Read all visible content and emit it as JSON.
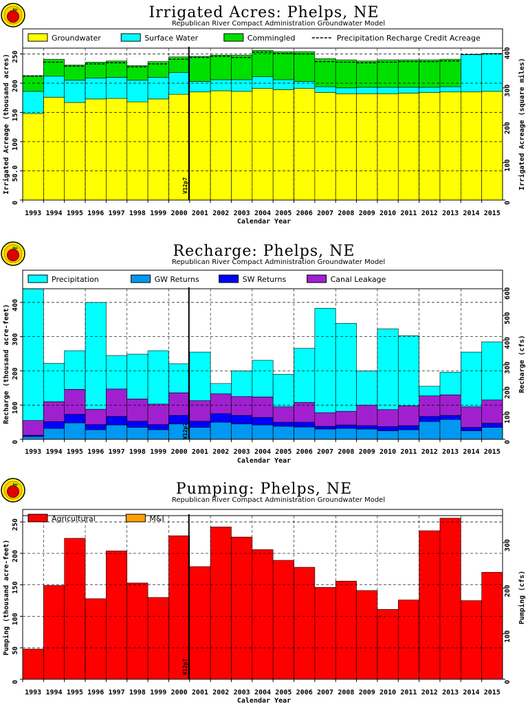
{
  "years": [
    "1993",
    "1994",
    "1995",
    "1996",
    "1997",
    "1998",
    "1999",
    "2000",
    "2001",
    "2002",
    "2003",
    "2004",
    "2005",
    "2006",
    "2007",
    "2008",
    "2009",
    "2010",
    "2011",
    "2012",
    "2013",
    "2014",
    "2015"
  ],
  "marker_label": "V12p7",
  "xlabel": "Calendar Year",
  "chart_data": [
    {
      "type": "area",
      "title": "Irrigated Acres: Phelps, NE",
      "subtitle": "Republican River Compact Administration Groundwater Model",
      "xlabel": "Calendar Year",
      "ylabel": "Irrigated Acreage (thousand acres)",
      "ylabel_right": "Irrigated Acreage (square miles)",
      "ylim": [
        0,
        260
      ],
      "yticks": [
        0,
        50,
        100,
        150,
        200,
        250
      ],
      "ytick_labels": [
        "0",
        "50.0",
        "100",
        "150",
        "200",
        "250"
      ],
      "yticks_right_values": [
        0,
        100,
        200,
        300,
        400
      ],
      "yticks_right_labels": [
        "0",
        "100",
        "200",
        "300",
        "400"
      ],
      "grid": true,
      "legend_position": "top",
      "categories": [
        "1993",
        "1994",
        "1995",
        "1996",
        "1997",
        "1998",
        "1999",
        "2000",
        "2001",
        "2002",
        "2003",
        "2004",
        "2005",
        "2006",
        "2007",
        "2008",
        "2009",
        "2010",
        "2011",
        "2012",
        "2013",
        "2014",
        "2015"
      ],
      "series": [
        {
          "name": "Groundwater",
          "color": "#ffff00",
          "values": [
            148,
            176,
            167,
            173,
            174,
            168,
            173,
            181,
            185,
            187,
            186,
            191,
            189,
            191,
            184,
            182,
            182,
            182,
            183,
            184,
            185,
            185,
            186
          ]
        },
        {
          "name": "Surface Water",
          "color": "#00ffff",
          "values": [
            38,
            36,
            38,
            36,
            36,
            37,
            37,
            37,
            18,
            19,
            20,
            20,
            17,
            12,
            10,
            10,
            11,
            11,
            10,
            9,
            9,
            64,
            65
          ]
        },
        {
          "name": "Commingled",
          "color": "#00e000",
          "values": [
            27,
            29,
            26,
            27,
            28,
            25,
            27,
            27,
            43,
            42,
            42,
            45,
            48,
            51,
            48,
            48,
            45,
            47,
            47,
            47,
            47,
            0,
            0
          ]
        }
      ],
      "line_series": {
        "name": "Precipitation Recharge Credit Acreage",
        "values": [
          212,
          236,
          229,
          233,
          235,
          228,
          233,
          241,
          244,
          246,
          244,
          253,
          251,
          250,
          237,
          236,
          235,
          236,
          237,
          237,
          238,
          249,
          250
        ]
      }
    },
    {
      "type": "area",
      "title": "Recharge: Phelps, NE",
      "subtitle": "Republican River Compact Administration Groundwater Model",
      "xlabel": "Calendar Year",
      "ylabel": "Recharge (thousand acre-feet)",
      "ylabel_right": "Recharge (cfs)",
      "ylim": [
        0,
        440
      ],
      "yticks": [
        0,
        100,
        200,
        300,
        400
      ],
      "ytick_labels": [
        "0",
        "100",
        "200",
        "300",
        "400"
      ],
      "yticks_right_values": [
        0,
        100,
        200,
        300,
        400,
        500,
        600
      ],
      "yticks_right_labels": [
        "0",
        "100",
        "200",
        "300",
        "400",
        "500",
        "600"
      ],
      "grid": true,
      "legend_position": "top",
      "categories": [
        "1993",
        "1994",
        "1995",
        "1996",
        "1997",
        "1998",
        "1999",
        "2000",
        "2001",
        "2002",
        "2003",
        "2004",
        "2005",
        "2006",
        "2007",
        "2008",
        "2009",
        "2010",
        "2011",
        "2012",
        "2013",
        "2014",
        "2015"
      ],
      "series": [
        {
          "name": "GW Returns",
          "color": "#0098f0",
          "values": [
            8,
            32,
            48,
            28,
            42,
            35,
            28,
            45,
            35,
            50,
            45,
            42,
            38,
            36,
            30,
            32,
            30,
            25,
            28,
            52,
            58,
            25,
            35
          ]
        },
        {
          "name": "SW Returns",
          "color": "#0000ff",
          "values": [
            4,
            20,
            25,
            15,
            25,
            18,
            15,
            25,
            18,
            25,
            25,
            22,
            12,
            14,
            8,
            10,
            10,
            12,
            12,
            15,
            12,
            10,
            12
          ]
        },
        {
          "name": "Canal Leakage",
          "color": "#a020d0",
          "values": [
            43,
            58,
            73,
            45,
            80,
            65,
            60,
            66,
            60,
            58,
            55,
            60,
            45,
            58,
            40,
            40,
            60,
            50,
            58,
            60,
            60,
            60,
            68
          ]
        },
        {
          "name": "Precipitation",
          "color": "#00ffff",
          "values": [
            385,
            112,
            113,
            312,
            98,
            131,
            156,
            85,
            142,
            30,
            75,
            107,
            95,
            158,
            305,
            257,
            100,
            236,
            205,
            28,
            66,
            160,
            170
          ]
        }
      ]
    },
    {
      "type": "bar",
      "title": "Pumping: Phelps, NE",
      "subtitle": "Republican River Compact Administration Groundwater Model",
      "xlabel": "Calendar Year",
      "ylabel": "Pumping (thousand acre-feet)",
      "ylabel_right": "Pumping (cfs)",
      "ylim": [
        0,
        260
      ],
      "yticks": [
        0,
        50,
        100,
        150,
        200,
        250
      ],
      "ytick_labels": [
        "0",
        "50",
        "100",
        "150",
        "200",
        "250"
      ],
      "yticks_right_values": [
        0,
        100,
        200,
        300
      ],
      "yticks_right_labels": [
        "0",
        "100",
        "200",
        "300"
      ],
      "grid": true,
      "legend_position": "top",
      "categories": [
        "1993",
        "1994",
        "1995",
        "1996",
        "1997",
        "1998",
        "1999",
        "2000",
        "2001",
        "2002",
        "2003",
        "2004",
        "2005",
        "2006",
        "2007",
        "2008",
        "2009",
        "2010",
        "2011",
        "2012",
        "2013",
        "2014",
        "2015"
      ],
      "series": [
        {
          "name": "Agricultural",
          "color": "#ff0000",
          "values": [
            48,
            149,
            224,
            128,
            204,
            153,
            130,
            228,
            179,
            242,
            226,
            206,
            189,
            178,
            146,
            156,
            141,
            111,
            126,
            236,
            256,
            125,
            170
          ]
        },
        {
          "name": "M&I",
          "color": "#ffa000",
          "values": [
            0,
            0,
            0,
            0,
            0,
            0,
            0,
            0,
            0,
            0,
            0,
            0,
            0,
            0,
            0,
            0,
            0,
            0,
            0,
            0,
            0,
            0,
            0
          ]
        }
      ]
    }
  ]
}
